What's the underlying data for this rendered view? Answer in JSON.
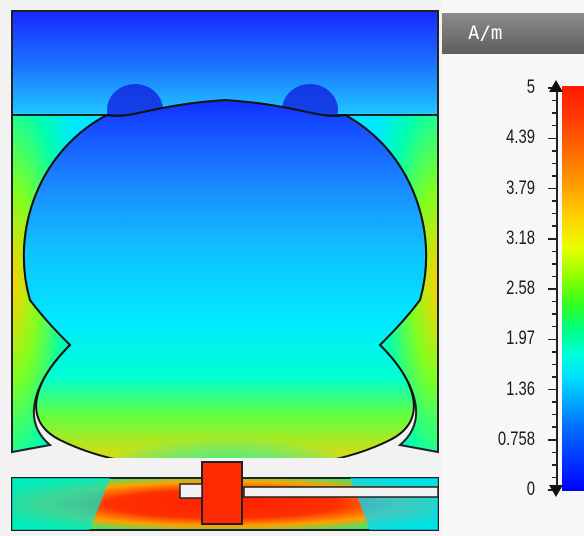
{
  "colorbar": {
    "unit": "A/m",
    "tick_labels": [
      "5",
      "4.39",
      "3.79",
      "3.18",
      "2.58",
      "1.97",
      "1.36",
      "0.758",
      "0"
    ],
    "colors": [
      "#ff1a00",
      "#ffd000",
      "#30ff20",
      "#00ffd8",
      "#0070ff",
      "#0000ff"
    ]
  },
  "field_plot": {
    "quantity": "H-field magnitude",
    "background_color": "#0a3cff"
  }
}
